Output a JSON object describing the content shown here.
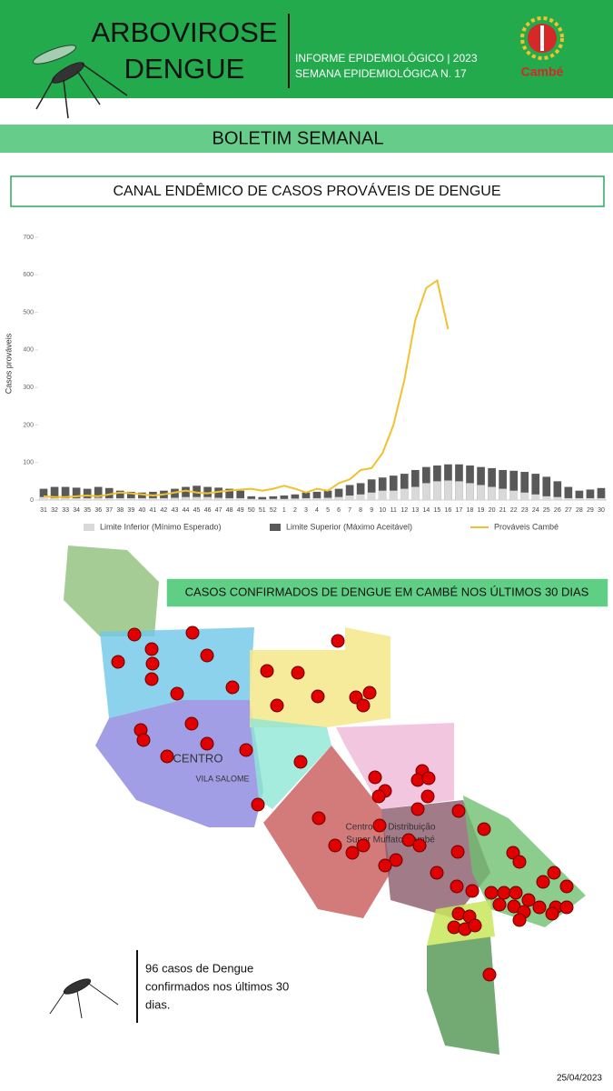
{
  "header": {
    "title_line1": "ARBOVIROSE",
    "title_line2": "DENGUE",
    "report": "INFORME EPIDEMIOLÓGICO | 2023",
    "week": "SEMANA EPIDEMIOLÓGICA  N. 17",
    "logo": "Cambé"
  },
  "banner": "BOLETIM SEMANAL",
  "chart_data": {
    "type": "bar_line",
    "title": "CANAL ENDÊMICO DE CASOS PROVÁVEIS DE DENGUE",
    "y_label": "Casos prováveis",
    "categories": [
      "31",
      "32",
      "33",
      "34",
      "35",
      "36",
      "37",
      "38",
      "39",
      "40",
      "41",
      "42",
      "43",
      "44",
      "45",
      "46",
      "47",
      "48",
      "49",
      "50",
      "51",
      "52",
      "1",
      "2",
      "3",
      "4",
      "5",
      "6",
      "7",
      "8",
      "9",
      "10",
      "11",
      "12",
      "13",
      "14",
      "15",
      "16",
      "17",
      "18",
      "19",
      "20",
      "21",
      "22",
      "23",
      "24",
      "25",
      "26",
      "27",
      "28",
      "29",
      "30"
    ],
    "series": [
      {
        "name": "Limite Inferior (Mínimo Esperado)",
        "color": "#d9d9d9",
        "kind": "bar",
        "values": [
          8,
          5,
          5,
          5,
          5,
          6,
          5,
          5,
          5,
          5,
          5,
          5,
          6,
          8,
          8,
          8,
          6,
          5,
          5,
          3,
          2,
          3,
          3,
          4,
          5,
          5,
          6,
          8,
          12,
          15,
          20,
          25,
          25,
          30,
          35,
          45,
          50,
          52,
          50,
          45,
          40,
          35,
          30,
          25,
          20,
          15,
          10,
          8,
          5,
          5,
          5,
          5
        ]
      },
      {
        "name": "Limite Superior (Máximo Aceitável)",
        "color": "#595959",
        "kind": "bar",
        "values": [
          30,
          35,
          35,
          33,
          30,
          35,
          32,
          25,
          22,
          20,
          22,
          25,
          30,
          35,
          38,
          35,
          33,
          30,
          25,
          10,
          8,
          10,
          12,
          15,
          20,
          22,
          25,
          30,
          40,
          45,
          55,
          60,
          65,
          70,
          80,
          88,
          92,
          95,
          95,
          92,
          88,
          85,
          80,
          78,
          75,
          70,
          62,
          50,
          35,
          25,
          28,
          32
        ]
      },
      {
        "name": "Prováveis Cambé",
        "color": "#f2c12e",
        "kind": "line",
        "values": [
          10,
          8,
          8,
          10,
          12,
          10,
          15,
          20,
          18,
          15,
          12,
          15,
          20,
          25,
          20,
          18,
          22,
          25,
          28,
          30,
          25,
          30,
          38,
          30,
          20,
          30,
          25,
          45,
          55,
          80,
          85,
          125,
          200,
          320,
          480,
          565,
          585,
          455,
          null,
          null,
          null,
          null,
          null,
          null,
          null,
          null,
          null,
          null,
          null,
          null,
          null,
          null
        ]
      }
    ],
    "ylim": [
      0,
      700
    ],
    "yticks": [
      0,
      100,
      200,
      300,
      400,
      500,
      600,
      700
    ],
    "grid": false,
    "legend": "bottom"
  },
  "map": {
    "title": "CASOS CONFIRMADOS DE DENGUE EM CAMBÉ NOS ÚLTIMOS 30 DIAS",
    "labels": [
      "CENTRO",
      "VILA SALOME",
      "Centro de Distribuição",
      "Super Muffato Cambé"
    ]
  },
  "note": {
    "line1": "96 casos de Dengue",
    "line2": "confirmados nos últimos 30",
    "line3": "dias."
  },
  "date": "25/04/2023"
}
